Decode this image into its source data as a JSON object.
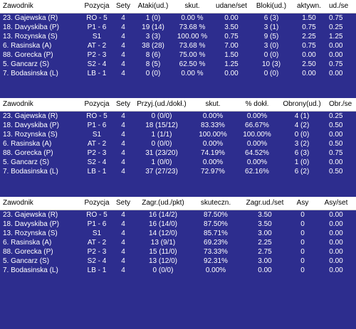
{
  "sections": [
    {
      "headers": [
        "Zawodnik",
        "Pozycja",
        "Sety",
        "Ataki(ud.)",
        "skut.",
        "udane/set",
        "Bloki(ud.)",
        "aktywn.",
        "ud./se"
      ],
      "rows": [
        [
          "23. Gajewska (R)",
          "RO - 5",
          "4",
          "1 (0)",
          "0.00 %",
          "0.00",
          "6 (3)",
          "1.50",
          "0.75"
        ],
        [
          "18. Davyskiba (P)",
          "P1 - 6",
          "4",
          "19 (14)",
          "73.68 %",
          "3.50",
          "3 (1)",
          "0.75",
          "0.25"
        ],
        [
          "13. Rozynska (S)",
          "S1",
          "4",
          "3 (3)",
          "100.00 %",
          "0.75",
          "9 (5)",
          "2.25",
          "1.25"
        ],
        [
          "6. Rasinska (A)",
          "AT - 2",
          "4",
          "38 (28)",
          "73.68 %",
          "7.00",
          "3 (0)",
          "0.75",
          "0.00"
        ],
        [
          "88. Gorecka (P)",
          "P2 - 3",
          "4",
          "8 (6)",
          "75.00 %",
          "1.50",
          "0 (0)",
          "0.00",
          "0.00"
        ],
        [
          "5. Gancarz (S)",
          "S2 - 4",
          "4",
          "8 (5)",
          "62.50 %",
          "1.25",
          "10 (3)",
          "2.50",
          "0.75"
        ],
        [
          "7. Bodasinska (L)",
          "LB - 1",
          "4",
          "0 (0)",
          "0.00 %",
          "0.00",
          "0 (0)",
          "0.00",
          "0.00"
        ]
      ]
    },
    {
      "headers": [
        "Zawodnik",
        "Pozycja",
        "Sety",
        "Przyj.(ud./dokł.)",
        "skut.",
        "% dokł.",
        "Obrony(ud.)",
        "Obr./se"
      ],
      "rows": [
        [
          "23. Gajewska (R)",
          "RO - 5",
          "4",
          "0 (0/0)",
          "0.00%",
          "0.00%",
          "4 (1)",
          "0.25"
        ],
        [
          "18. Davyskiba (P)",
          "P1 - 6",
          "4",
          "18 (15/12)",
          "83.33%",
          "66.67%",
          "4 (2)",
          "0.50"
        ],
        [
          "13. Rozynska (S)",
          "S1",
          "4",
          "1 (1/1)",
          "100.00%",
          "100.00%",
          "0 (0)",
          "0.00"
        ],
        [
          "6. Rasinska (A)",
          "AT - 2",
          "4",
          "0 (0/0)",
          "0.00%",
          "0.00%",
          "3 (2)",
          "0.50"
        ],
        [
          "88. Gorecka (P)",
          "P2 - 3",
          "4",
          "31 (23/20)",
          "74.19%",
          "64.52%",
          "6 (3)",
          "0.75"
        ],
        [
          "5. Gancarz (S)",
          "S2 - 4",
          "4",
          "1 (0/0)",
          "0.00%",
          "0.00%",
          "1 (0)",
          "0.00"
        ],
        [
          "7. Bodasinska (L)",
          "LB - 1",
          "4",
          "37 (27/23)",
          "72.97%",
          "62.16%",
          "6 (2)",
          "0.50"
        ]
      ]
    },
    {
      "headers": [
        "Zawodnik",
        "Pozycja",
        "Sety",
        "Zagr.(ud./pkt)",
        "skuteczn.",
        "Zagr.ud./set",
        "Asy",
        "Asy/set"
      ],
      "rows": [
        [
          "23. Gajewska (R)",
          "RO - 5",
          "4",
          "16 (14/2)",
          "87.50%",
          "3.50",
          "0",
          "0.00"
        ],
        [
          "18. Davyskiba (P)",
          "P1 - 6",
          "4",
          "16 (14/0)",
          "87.50%",
          "3.50",
          "0",
          "0.00"
        ],
        [
          "13. Rozynska (S)",
          "S1",
          "4",
          "14 (12/0)",
          "85.71%",
          "3.00",
          "0",
          "0.00"
        ],
        [
          "6. Rasinska (A)",
          "AT - 2",
          "4",
          "13 (9/1)",
          "69.23%",
          "2.25",
          "0",
          "0.00"
        ],
        [
          "88. Gorecka (P)",
          "P2 - 3",
          "4",
          "15 (11/0)",
          "73.33%",
          "2.75",
          "0",
          "0.00"
        ],
        [
          "5. Gancarz (S)",
          "S2 - 4",
          "4",
          "13 (12/0)",
          "92.31%",
          "3.00",
          "0",
          "0.00"
        ],
        [
          "7. Bodasinska (L)",
          "LB - 1",
          "4",
          "0 (0/0)",
          "0.00%",
          "0.00",
          "0",
          "0.00"
        ]
      ]
    }
  ],
  "colors": {
    "background": "#2d2d8e",
    "header_background": "#ffffff",
    "header_text": "#000000",
    "row_text": "#ffffff"
  }
}
